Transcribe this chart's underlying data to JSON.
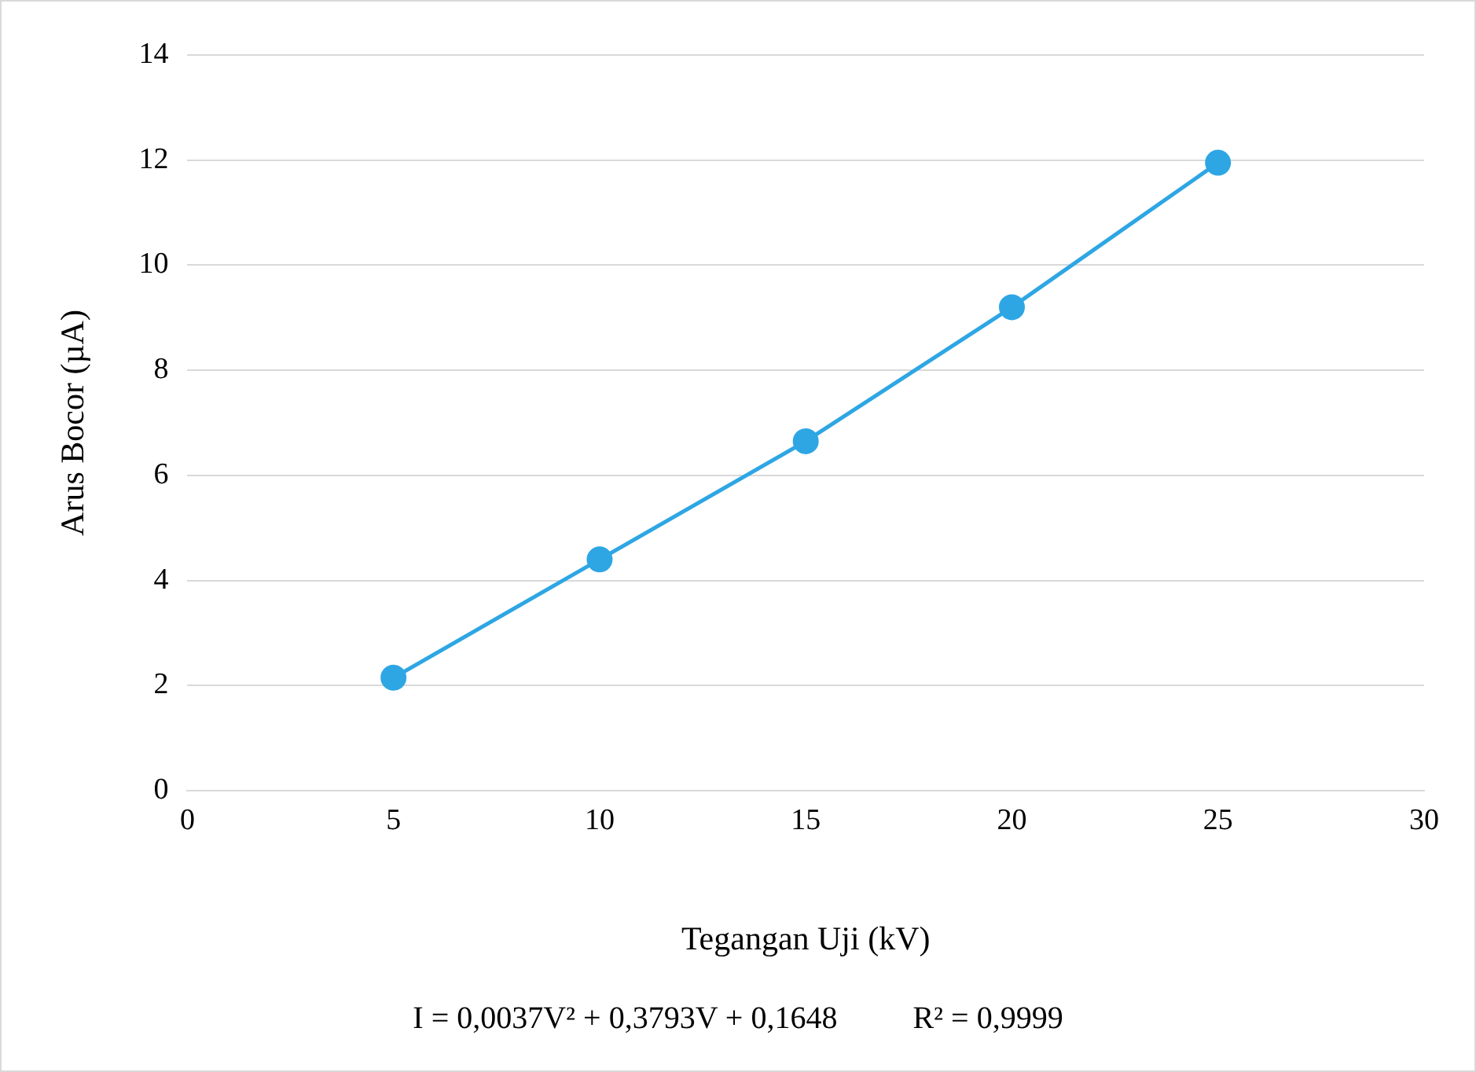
{
  "chart_data": {
    "type": "line",
    "xlabel": "Tegangan Uji (kV)",
    "ylabel": "Arus Bocor (µA)",
    "x": [
      5,
      10,
      15,
      20,
      25
    ],
    "series": [
      {
        "color": "#2ea6e4",
        "values": [
          2.15,
          4.4,
          6.65,
          9.2,
          11.95
        ]
      }
    ],
    "xlim": [
      0,
      30
    ],
    "xticks": [
      0,
      5,
      10,
      15,
      20,
      25,
      30
    ],
    "ylim": [
      0,
      14
    ],
    "yticks": [
      0,
      2,
      4,
      6,
      8,
      10,
      12,
      14
    ],
    "grid": "y",
    "legend": false,
    "marker": "circle",
    "line_style": "solid",
    "annotations": [
      "I = 0,0037V² + 0,3793V + 0,1648",
      "R² = 0,9999"
    ]
  }
}
